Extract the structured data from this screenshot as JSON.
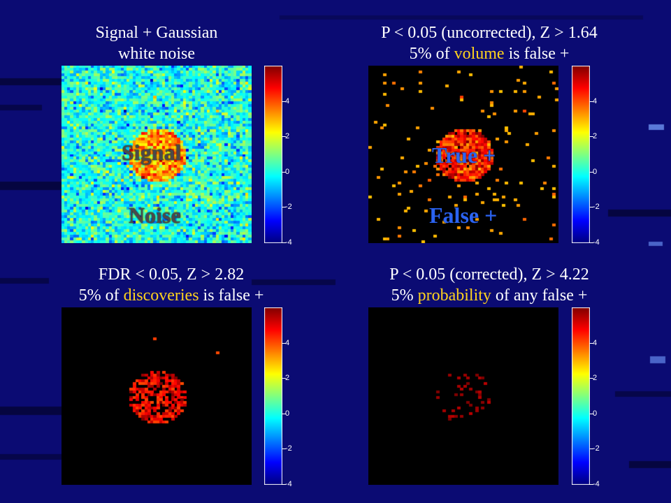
{
  "captions": {
    "tl": {
      "line1": "Signal + Gaussian",
      "line2": "white noise"
    },
    "tr": {
      "line1": "P < 0.05 (uncorrected), Z > 1.64",
      "line2_pre": "5% of ",
      "line2_hl": "volume",
      "line2_post": " is false +"
    },
    "bl": {
      "line1": "FDR < 0.05, Z > 2.82",
      "line2_pre": "5% of ",
      "line2_hl": "discoveries",
      "line2_post": " is false +"
    },
    "br": {
      "line1": "P < 0.05 (corrected), Z > 4.22",
      "line2_pre": "5% ",
      "line2_hl": "probability",
      "line2_post": " of any false +"
    }
  },
  "overlays": {
    "signal": "Signal",
    "noise": "Noise",
    "true_pos": "True +",
    "false_pos": "False +"
  },
  "colorbar": {
    "ticks": [
      "4",
      "2",
      "0",
      "-2",
      "-4"
    ],
    "tick_values": [
      4,
      2,
      0,
      -2,
      -4
    ],
    "range": [
      -4,
      6
    ]
  },
  "thresholds": {
    "uncorrected": 1.64,
    "fdr": 2.82,
    "corrected": 4.22
  },
  "colors": {
    "background": "#0b0b73",
    "highlight": "#ffd21e",
    "overlay_blue": "#2b63f0"
  }
}
